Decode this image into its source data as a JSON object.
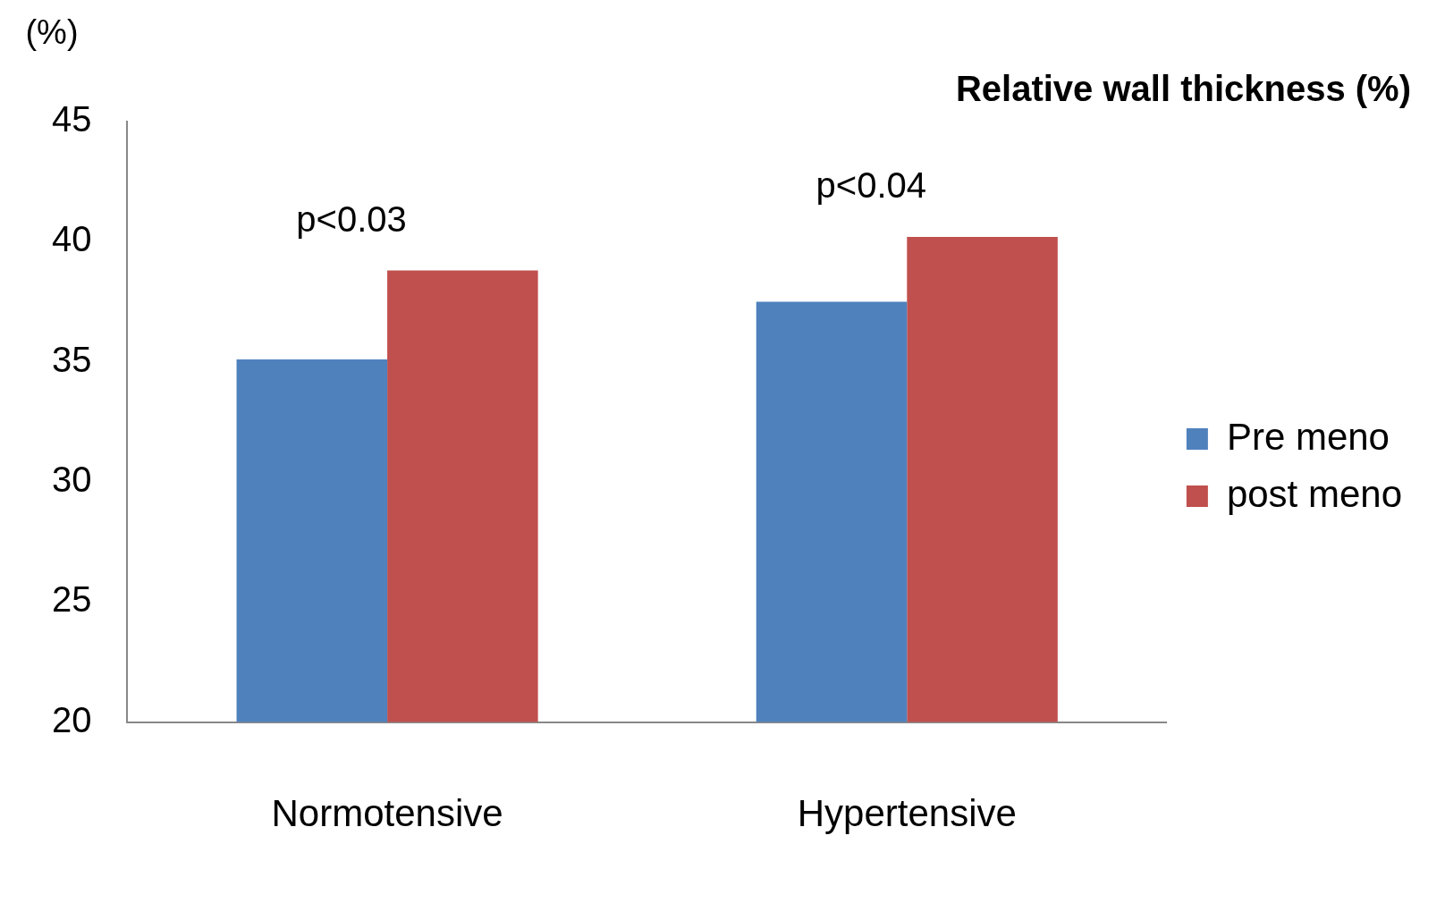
{
  "chart_data": {
    "type": "bar",
    "title": "Relative wall thickness (%)",
    "ylabel": "(%)",
    "categories": [
      "Normotensive",
      "Hypertensive"
    ],
    "series": [
      {
        "name": "Pre meno",
        "color": "#4f81bd",
        "values": [
          35.1,
          37.5
        ]
      },
      {
        "name": "post meno",
        "color": "#c0504d",
        "values": [
          38.8,
          40.2
        ]
      }
    ],
    "ylim": [
      20,
      45
    ],
    "yticks": [
      20,
      25,
      30,
      35,
      40,
      45
    ],
    "grid": false,
    "legend": "right",
    "annotations": [
      "p<0.03",
      "p<0.04"
    ]
  }
}
